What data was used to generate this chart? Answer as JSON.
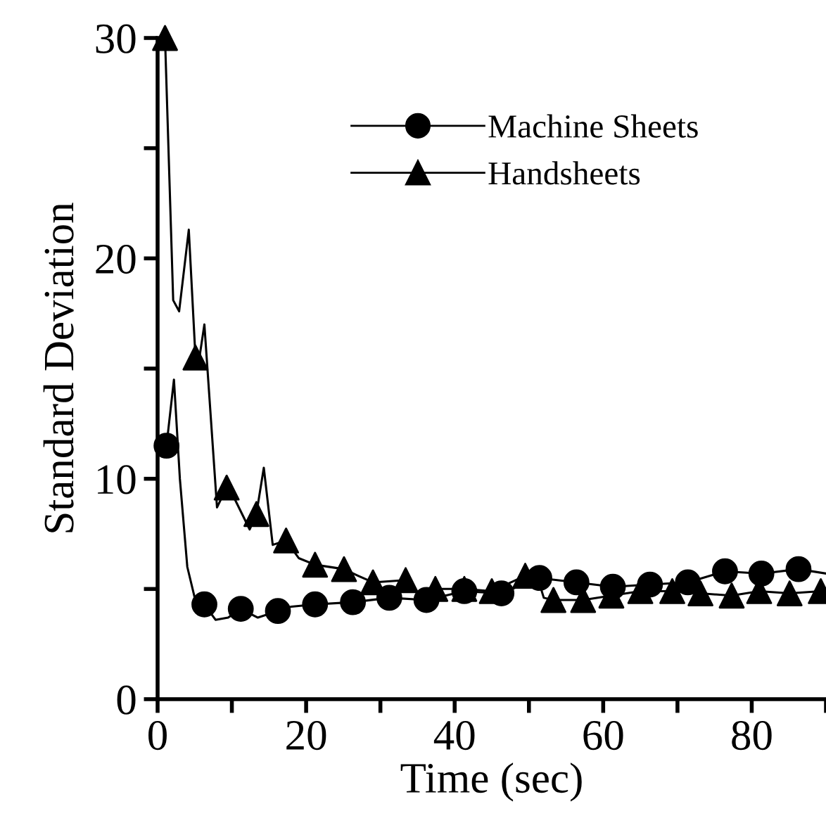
{
  "chart_data": {
    "type": "line",
    "xlabel": "Time (sec)",
    "ylabel": "Standard Deviation",
    "xlim": [
      0,
      90
    ],
    "ylim": [
      0,
      30
    ],
    "xticks": [
      0,
      {
        "value": 10,
        "label": null
      },
      20,
      {
        "value": 30,
        "label": null
      },
      40,
      {
        "value": 50,
        "label": null
      },
      60,
      {
        "value": 70,
        "label": null
      },
      80,
      {
        "value": 90,
        "label": null
      }
    ],
    "yticks": [
      0,
      {
        "value": 5,
        "label": null
      },
      10,
      {
        "value": 15,
        "label": null
      },
      20,
      {
        "value": 25,
        "label": null
      },
      30
    ],
    "grid": false,
    "legend": "top",
    "series": [
      {
        "color": "#000000",
        "marker": "none",
        "x": [
          1.2,
          2.2,
          3,
          4,
          5,
          6.3,
          7.8,
          9.5,
          11.2,
          13.5,
          16.2,
          18,
          21.2,
          26.3,
          31.2,
          36.2,
          41.3,
          46.3,
          51.4,
          56.4,
          61.3,
          66.3,
          71.4,
          76.4,
          81.3,
          86.3,
          90
        ],
        "type": "line",
        "values": [
          11.5,
          14.5,
          10,
          6,
          4.6,
          4.3,
          3.6,
          3.7,
          4.1,
          3.7,
          4.0,
          4.2,
          4.3,
          4.4,
          4.6,
          4.5,
          4.9,
          4.8,
          5.5,
          5.3,
          5.1,
          5.2,
          5.3,
          5.8,
          5.7,
          5.9,
          5.7
        ]
      },
      {
        "type": "scatter",
        "name": "Machine Sheets",
        "color": "#000000",
        "marker": "circle",
        "x": [
          1.2,
          6.3,
          11.2,
          16.2,
          21.2,
          26.3,
          31.2,
          36.2,
          41.3,
          46.3,
          51.4,
          56.4,
          61.3,
          66.3,
          71.4,
          76.4,
          81.3,
          86.3
        ],
        "values": [
          11.5,
          4.3,
          4.1,
          4.0,
          4.3,
          4.4,
          4.6,
          4.5,
          4.9,
          4.8,
          5.5,
          5.3,
          5.1,
          5.2,
          5.3,
          5.8,
          5.7,
          5.9
        ]
      },
      {
        "color": "#000000",
        "marker": "none",
        "x": [
          1,
          2.1,
          2.9,
          4.2,
          5.1,
          5.5,
          6.3,
          8,
          9.3,
          10.5,
          12.4,
          13.3,
          14.3,
          15.5,
          17.3,
          19,
          21.2,
          25.1,
          27,
          29,
          33.4,
          35,
          37.4,
          41.3,
          45,
          49.5,
          51,
          52,
          53.3,
          57.3,
          61.1,
          65,
          69.3,
          73.1,
          77.3,
          81,
          85.1,
          89.3,
          90
        ],
        "type": "line",
        "values": [
          30,
          18.1,
          17.6,
          21.3,
          15.5,
          15.2,
          17.0,
          8.7,
          9.6,
          9.0,
          7.7,
          8.4,
          10.5,
          7.0,
          7.2,
          6.4,
          6.1,
          5.9,
          5.6,
          5.3,
          5.4,
          4.8,
          5.0,
          5.0,
          4.9,
          5.6,
          5.7,
          4.6,
          4.5,
          4.5,
          4.7,
          4.9,
          4.9,
          4.8,
          4.7,
          4.9,
          4.8,
          4.9,
          4.9
        ]
      },
      {
        "type": "scatter",
        "name": "Handsheets",
        "color": "#000000",
        "marker": "triangle",
        "x": [
          1,
          5.1,
          9.3,
          13.3,
          17.3,
          21.2,
          25.1,
          29,
          33.4,
          37.4,
          41.3,
          45,
          49.5,
          53.3,
          57.3,
          61.1,
          65,
          69.3,
          73.1,
          77.3,
          81,
          85.1,
          89.3
        ],
        "values": [
          30,
          15.5,
          9.6,
          8.4,
          7.2,
          6.1,
          5.9,
          5.3,
          5.4,
          5.0,
          5.0,
          4.9,
          5.6,
          4.5,
          4.5,
          4.7,
          4.9,
          4.9,
          4.8,
          4.7,
          4.9,
          4.8,
          4.9
        ]
      }
    ]
  }
}
